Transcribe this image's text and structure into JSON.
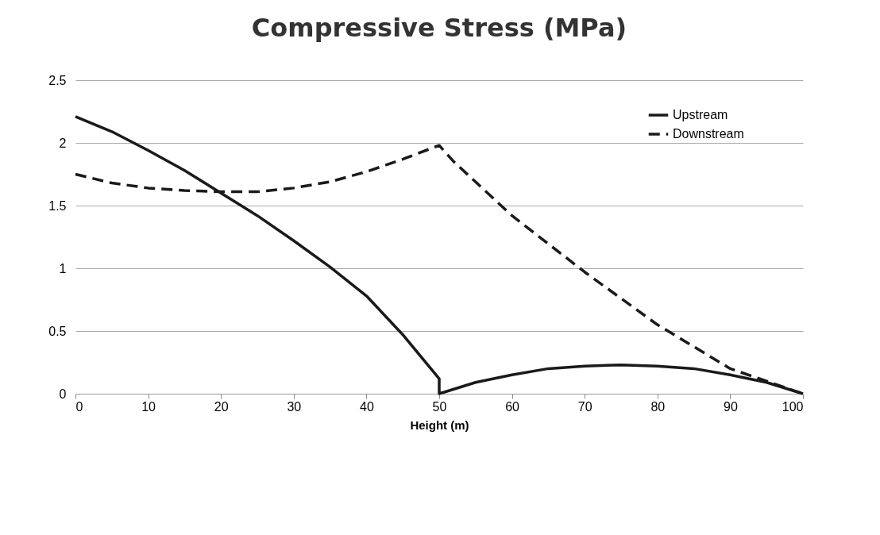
{
  "chart_data": {
    "type": "line",
    "title": "Compressive Stress (MPa)",
    "xlabel": "Height (m)",
    "xlim": [
      0,
      100
    ],
    "xticks": [
      0,
      10,
      20,
      30,
      40,
      50,
      60,
      70,
      80,
      90,
      100
    ],
    "ylim": [
      0,
      2.5
    ],
    "yticks": [
      0,
      0.5,
      1,
      1.5,
      2,
      2.5
    ],
    "grid": "y",
    "legend": "top right",
    "marker": "none",
    "series": [
      {
        "name": "Upstream",
        "color": "#1a1a1a",
        "line_style": "solid",
        "x": [
          0,
          5,
          10,
          15,
          20,
          25,
          30,
          35,
          40,
          45,
          50,
          50,
          55,
          60,
          65,
          70,
          75,
          80,
          85,
          90,
          95,
          100
        ],
        "values": [
          2.21,
          2.09,
          1.94,
          1.78,
          1.6,
          1.42,
          1.22,
          1.01,
          0.78,
          0.47,
          0.12,
          0,
          0.09,
          0.15,
          0.2,
          0.22,
          0.23,
          0.22,
          0.2,
          0.15,
          0.09,
          0
        ]
      },
      {
        "name": "Downstream",
        "color": "#1a1a1a",
        "line_style": "dashed",
        "x": [
          0,
          5,
          10,
          15,
          20,
          25,
          30,
          35,
          40,
          45,
          50,
          52,
          60,
          70,
          80,
          90,
          100
        ],
        "values": [
          1.75,
          1.68,
          1.64,
          1.62,
          1.61,
          1.61,
          1.64,
          1.69,
          1.77,
          1.87,
          1.98,
          1.85,
          1.42,
          0.97,
          0.55,
          0.2,
          0
        ]
      }
    ]
  }
}
